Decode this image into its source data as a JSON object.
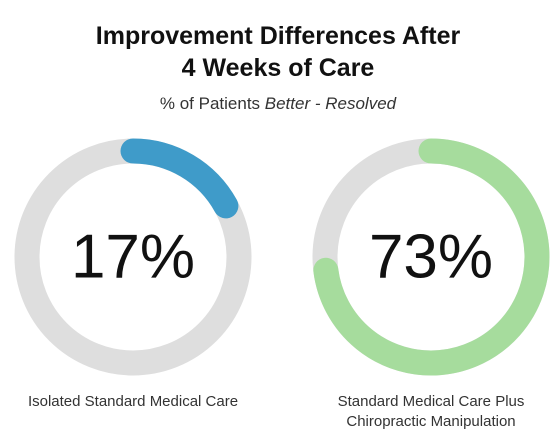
{
  "header": {
    "title_line1": "Improvement Differences After",
    "title_line2": "4 Weeks of Care",
    "subtitle_prefix": "% of Patients ",
    "subtitle_better": "Better",
    "subtitle_sep": " - ",
    "subtitle_resolved": "Resolved"
  },
  "chart_data": [
    {
      "type": "pie",
      "subtype": "donut",
      "value_label": "17%",
      "value": 17,
      "label_line1": "Isolated Standard Medical Care",
      "label_line2": "",
      "color": "#3f9bc9",
      "track_color": "#dedede"
    },
    {
      "type": "pie",
      "subtype": "donut",
      "value_label": "73%",
      "value": 73,
      "label_line1": "Standard Medical Care Plus",
      "label_line2": "Chiropractic Manipulation",
      "color": "#a6dc9d",
      "track_color": "#dedede"
    }
  ]
}
